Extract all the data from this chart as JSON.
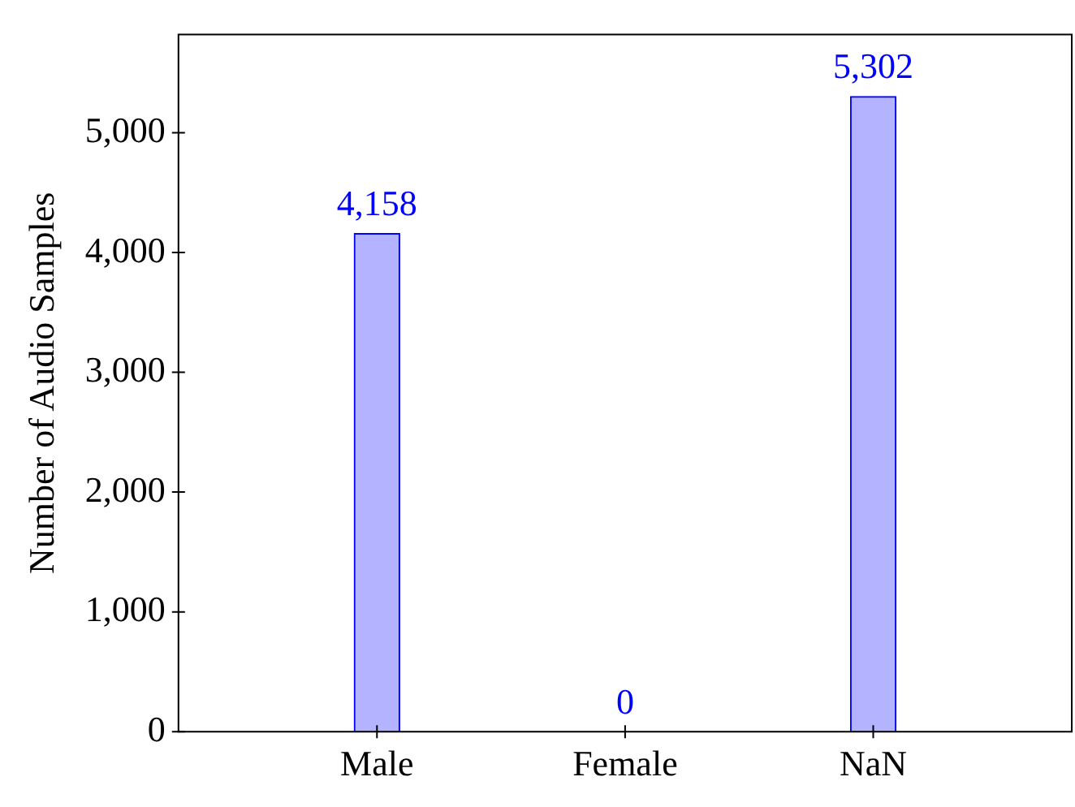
{
  "chart_data": {
    "type": "bar",
    "ylabel": "Number of Audio Samples",
    "categories": [
      "Male",
      "Female",
      "NaN"
    ],
    "values": [
      4158,
      0,
      5302
    ],
    "color": "#b3b3ff",
    "ylim": [
      0,
      5820
    ],
    "yticks": [
      {
        "value": 0,
        "label": "0"
      },
      {
        "value": 1000,
        "label": "1,000"
      },
      {
        "value": 2000,
        "label": "2,000"
      },
      {
        "value": 3000,
        "label": "3,000"
      },
      {
        "value": 4000,
        "label": "4,000"
      },
      {
        "value": 5000,
        "label": "5,000"
      }
    ],
    "value_labels": [
      "4,158",
      "0",
      "5,302"
    ],
    "grid": false,
    "legend": false
  }
}
